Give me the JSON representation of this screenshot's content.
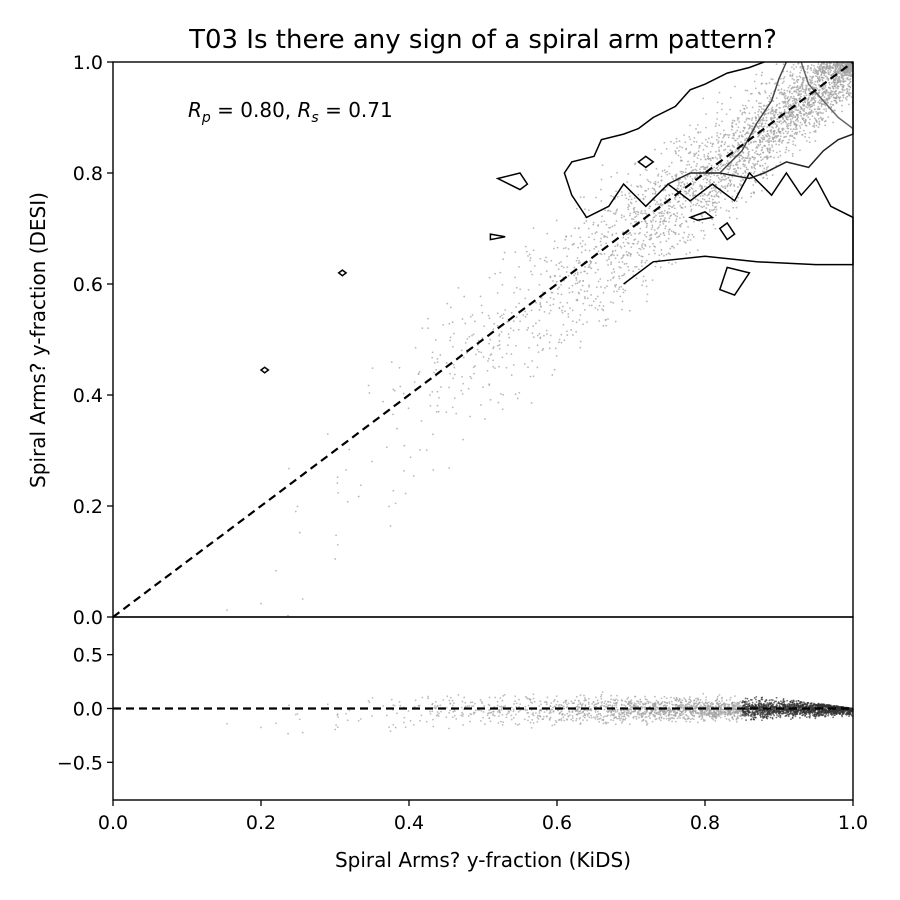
{
  "chart_data": [
    {
      "type": "scatter",
      "panel": "main",
      "title": "T03 Is there any sign of a spiral arm pattern?",
      "xlabel": "",
      "ylabel": "Spiral Arms? y-fraction (DESI)",
      "xlim": [
        0.0,
        1.0
      ],
      "ylim": [
        0.0,
        1.0
      ],
      "x_ticks": [
        "0.0",
        "0.2",
        "0.4",
        "0.6",
        "0.8",
        "1.0"
      ],
      "y_ticks": [
        "0.0",
        "0.2",
        "0.4",
        "0.6",
        "0.8",
        "1.0"
      ],
      "annotation": {
        "rp_symbol": "R",
        "rp_sub": "p",
        "rp_value": " = 0.80, ",
        "rs_symbol": "R",
        "rs_sub": "s",
        "rs_value": " = 0.71"
      },
      "reference_line": {
        "from": [
          0,
          0
        ],
        "to": [
          1,
          1
        ],
        "style": "dashed"
      },
      "point_color": "#a0a0a0",
      "contour_color": "#000000",
      "contours": [
        [
          [
            0.69,
            0.6
          ],
          [
            0.73,
            0.64
          ],
          [
            0.8,
            0.65
          ],
          [
            0.87,
            0.64
          ],
          [
            0.95,
            0.635
          ],
          [
            1.0,
            0.635
          ],
          [
            1.0,
            0.72
          ],
          [
            0.97,
            0.74
          ],
          [
            0.95,
            0.79
          ],
          [
            0.93,
            0.76
          ],
          [
            0.91,
            0.8
          ],
          [
            0.89,
            0.76
          ],
          [
            0.86,
            0.8
          ],
          [
            0.84,
            0.75
          ],
          [
            0.81,
            0.78
          ],
          [
            0.78,
            0.75
          ],
          [
            0.75,
            0.78
          ],
          [
            0.72,
            0.74
          ],
          [
            0.69,
            0.78
          ],
          [
            0.67,
            0.74
          ],
          [
            0.64,
            0.72
          ],
          [
            0.62,
            0.76
          ],
          [
            0.61,
            0.8
          ],
          [
            0.62,
            0.82
          ],
          [
            0.65,
            0.83
          ],
          [
            0.66,
            0.86
          ],
          [
            0.69,
            0.87
          ],
          [
            0.71,
            0.88
          ],
          [
            0.73,
            0.9
          ],
          [
            0.76,
            0.92
          ],
          [
            0.78,
            0.95
          ],
          [
            0.8,
            0.96
          ],
          [
            0.83,
            0.98
          ],
          [
            0.86,
            0.99
          ],
          [
            0.88,
            1.0
          ]
        ],
        [
          [
            0.75,
            0.78
          ],
          [
            0.78,
            0.8
          ],
          [
            0.82,
            0.8
          ],
          [
            0.86,
            0.79
          ],
          [
            0.88,
            0.8
          ],
          [
            0.91,
            0.82
          ],
          [
            0.94,
            0.81
          ],
          [
            0.96,
            0.84
          ],
          [
            0.98,
            0.86
          ],
          [
            1.0,
            0.87
          ],
          [
            1.0,
            1.0
          ]
        ],
        [
          [
            0.82,
            0.8
          ],
          [
            0.85,
            0.84
          ],
          [
            0.87,
            0.89
          ],
          [
            0.89,
            0.93
          ],
          [
            0.9,
            0.97
          ],
          [
            0.91,
            1.0
          ]
        ],
        [
          [
            0.93,
            1.0
          ],
          [
            0.94,
            0.96
          ],
          [
            0.96,
            0.93
          ],
          [
            0.98,
            0.9
          ],
          [
            1.0,
            0.88
          ]
        ]
      ],
      "small_contours": [
        [
          [
            0.52,
            0.79
          ],
          [
            0.55,
            0.8
          ],
          [
            0.56,
            0.78
          ],
          [
            0.55,
            0.77
          ],
          [
            0.52,
            0.79
          ]
        ],
        [
          [
            0.51,
            0.69
          ],
          [
            0.53,
            0.685
          ],
          [
            0.51,
            0.68
          ],
          [
            0.51,
            0.69
          ]
        ],
        [
          [
            0.72,
            0.83
          ],
          [
            0.73,
            0.82
          ],
          [
            0.72,
            0.81
          ],
          [
            0.71,
            0.82
          ],
          [
            0.72,
            0.83
          ]
        ],
        [
          [
            0.78,
            0.72
          ],
          [
            0.8,
            0.73
          ],
          [
            0.81,
            0.72
          ],
          [
            0.79,
            0.715
          ],
          [
            0.78,
            0.72
          ]
        ],
        [
          [
            0.82,
            0.7
          ],
          [
            0.83,
            0.71
          ],
          [
            0.84,
            0.69
          ],
          [
            0.83,
            0.68
          ],
          [
            0.82,
            0.7
          ]
        ],
        [
          [
            0.82,
            0.59
          ],
          [
            0.83,
            0.63
          ],
          [
            0.86,
            0.62
          ],
          [
            0.84,
            0.58
          ],
          [
            0.82,
            0.59
          ]
        ],
        [
          [
            0.31,
            0.625
          ],
          [
            0.315,
            0.62
          ],
          [
            0.31,
            0.615
          ],
          [
            0.305,
            0.62
          ],
          [
            0.31,
            0.625
          ]
        ],
        [
          [
            0.205,
            0.45
          ],
          [
            0.21,
            0.445
          ],
          [
            0.205,
            0.44
          ],
          [
            0.2,
            0.445
          ],
          [
            0.205,
            0.45
          ]
        ]
      ]
    },
    {
      "type": "scatter",
      "panel": "residual",
      "title": "",
      "xlabel": "Spiral Arms? y-fraction (KiDS)",
      "ylabel": "",
      "xlim": [
        0.0,
        1.0
      ],
      "ylim": [
        -0.85,
        0.85
      ],
      "x_ticks": [
        "0.0",
        "0.2",
        "0.4",
        "0.6",
        "0.8",
        "1.0"
      ],
      "y_ticks": [
        "0.5",
        "0.0",
        "−0.5"
      ],
      "reference_line": {
        "y": 0.0,
        "style": "dashed"
      },
      "point_color": "#a0a0a0"
    }
  ]
}
